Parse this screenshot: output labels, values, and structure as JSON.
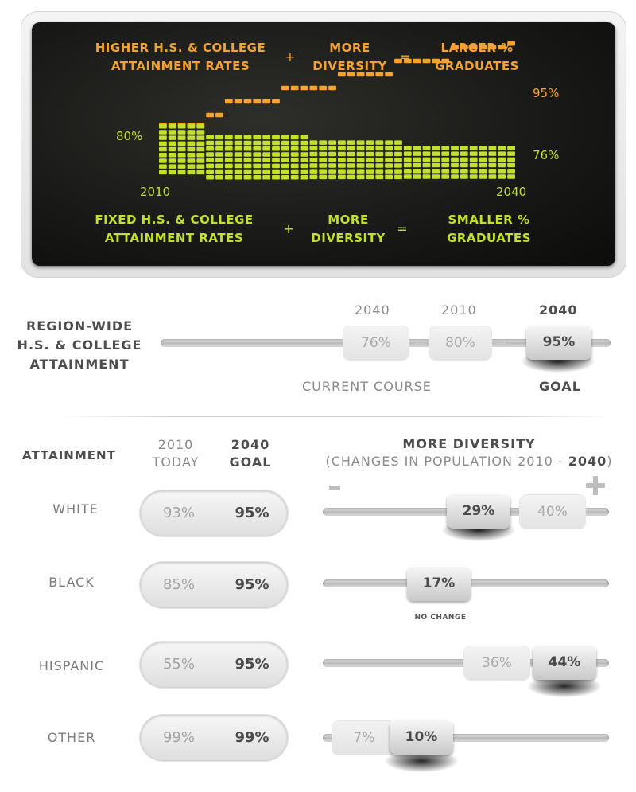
{
  "screen": {
    "top_left": "HIGHER H.S. & COLLEGE\nATTAINMENT RATES",
    "top_mid": "MORE\nDIVERSITY",
    "top_right": "LARGER %\nGRADUATES",
    "bottom_left": "FIXED H.S. & COLLEGE\nATTAINMENT RATES",
    "bottom_mid": "MORE\nDIVERSITY",
    "bottom_right": "SMALLER %\nGRADUATES",
    "plus": "+",
    "equals": "=",
    "label_95": "95%",
    "label_80": "80%",
    "label_76": "76%",
    "year_start": "2010",
    "year_end": "2040",
    "colors": {
      "orange": "#f5a230",
      "green": "#c4e02c"
    }
  },
  "chart_data": {
    "type": "area",
    "x_start": 2010,
    "x_end": 2040,
    "series": [
      {
        "name": "",
        "color": "#f5a230",
        "start": 80,
        "end": 95
      },
      {
        "name": "",
        "color": "#c4e02c",
        "start": 80,
        "end": 76
      }
    ]
  },
  "region": {
    "title": "REGION-WIDE\nH.S. & COLLEGE\nATTAINMENT",
    "col1_year": "2040",
    "col2_year": "2010",
    "col3_year": "2040",
    "val1": "76%",
    "val2": "80%",
    "val3": "95%",
    "arrow_left": "←",
    "arrow_right": "→",
    "current_course": "CURRENT COURSE",
    "goal": "GOAL"
  },
  "table": {
    "attainment_heading": "ATTAINMENT",
    "col_2010": "2010\nTODAY",
    "col_2040": "2040\nGOAL",
    "diversity_title": "MORE DIVERSITY",
    "diversity_sub_a": "(CHANGES IN POPULATION 2010 - ",
    "diversity_sub_b": "2040",
    "diversity_sub_c": ")",
    "minus": "-",
    "plus": "+",
    "no_change": "NO CHANGE",
    "rows": [
      {
        "label": "WHITE",
        "today": "93%",
        "goal": "95%",
        "pop_2010": "40%",
        "pop_2040": "29%"
      },
      {
        "label": "BLACK",
        "today": "85%",
        "goal": "95%",
        "pop_2010": "17%",
        "pop_2040": "17%"
      },
      {
        "label": "HISPANIC",
        "today": "55%",
        "goal": "95%",
        "pop_2010": "36%",
        "pop_2040": "44%"
      },
      {
        "label": "OTHER",
        "today": "99%",
        "goal": "99%",
        "pop_2010": "7%",
        "pop_2040": "10%"
      }
    ]
  }
}
